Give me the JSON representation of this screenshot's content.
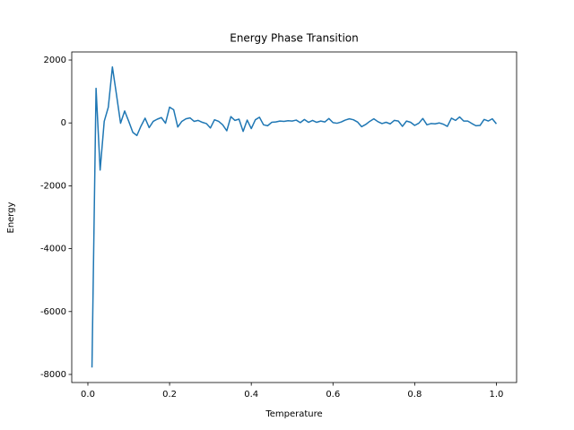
{
  "chart_data": {
    "type": "line",
    "title": "Energy Phase Transition",
    "x_label": "Temperature",
    "y_label": "Energy",
    "x": [
      0.01,
      0.02,
      0.03,
      0.04,
      0.05,
      0.06,
      0.07,
      0.08,
      0.09,
      0.1,
      0.11,
      0.12,
      0.13,
      0.14,
      0.15,
      0.16,
      0.17,
      0.18,
      0.19,
      0.2,
      0.21,
      0.22,
      0.23,
      0.24,
      0.25,
      0.26,
      0.27,
      0.28,
      0.29,
      0.3,
      0.31,
      0.32,
      0.33,
      0.34,
      0.35,
      0.36,
      0.37,
      0.38,
      0.39,
      0.4,
      0.41,
      0.42,
      0.43,
      0.44,
      0.45,
      0.46,
      0.47,
      0.48,
      0.49,
      0.5,
      0.51,
      0.52,
      0.53,
      0.54,
      0.55,
      0.56,
      0.57,
      0.58,
      0.59,
      0.6,
      0.61,
      0.62,
      0.63,
      0.64,
      0.65,
      0.66,
      0.67,
      0.68,
      0.69,
      0.7,
      0.71,
      0.72,
      0.73,
      0.74,
      0.75,
      0.76,
      0.77,
      0.78,
      0.79,
      0.8,
      0.81,
      0.82,
      0.83,
      0.84,
      0.85,
      0.86,
      0.87,
      0.88,
      0.89,
      0.9,
      0.91,
      0.92,
      0.93,
      0.94,
      0.95,
      0.96,
      0.97,
      0.98,
      0.99,
      1.0
    ],
    "series": [
      {
        "color": "#1f77b4",
        "values": [
          -7780,
          1100,
          -1500,
          50,
          500,
          1780,
          900,
          -10,
          380,
          50,
          -300,
          -400,
          -100,
          150,
          -150,
          50,
          120,
          170,
          -10,
          500,
          420,
          -130,
          50,
          130,
          160,
          50,
          80,
          20,
          -20,
          -160,
          100,
          50,
          -60,
          -250,
          200,
          80,
          120,
          -270,
          90,
          -180,
          100,
          180,
          -60,
          -90,
          20,
          30,
          60,
          50,
          70,
          60,
          90,
          10,
          110,
          20,
          80,
          20,
          60,
          30,
          140,
          10,
          -10,
          30,
          90,
          130,
          100,
          30,
          -120,
          -50,
          50,
          130,
          40,
          -20,
          20,
          -30,
          80,
          60,
          -110,
          60,
          20,
          -80,
          -10,
          140,
          -60,
          -20,
          -30,
          0,
          -40,
          -110,
          150,
          80,
          190,
          60,
          60,
          -20,
          -90,
          -80,
          110,
          60,
          130,
          -30
        ]
      }
    ],
    "xlim": [
      -0.0395,
      1.0495
    ],
    "ylim": [
      -8257,
      2257
    ],
    "xticks": [
      {
        "value": 0,
        "label": "0.0"
      },
      0.2,
      0.4,
      0.6,
      0.8,
      {
        "value": 1,
        "label": "1.0"
      }
    ],
    "yticks": [
      -8000,
      -6000,
      -4000,
      -2000,
      0,
      2000
    ],
    "grid": false
  }
}
